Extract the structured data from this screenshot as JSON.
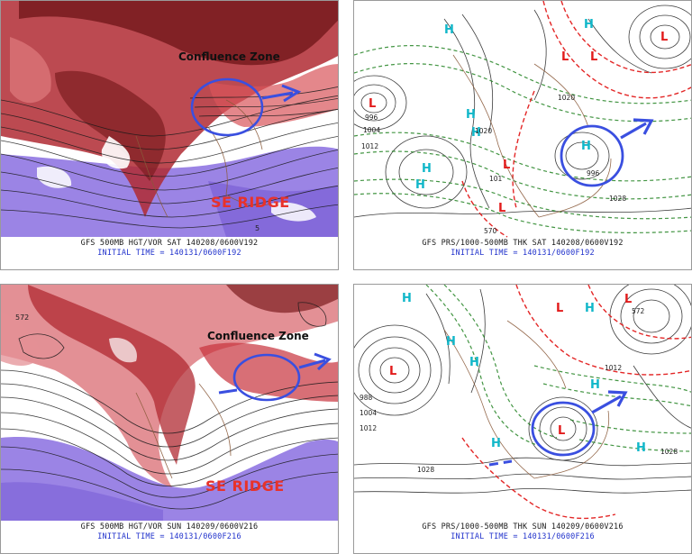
{
  "colors": {
    "high": "#11b7c9",
    "low": "#e21b1b",
    "highlight": "#3a4fe0",
    "ridge_text": "#e8322a",
    "vorticity_red": "#c8323c",
    "low_vorticity_purple": "#8a6fe0"
  },
  "panels": [
    {
      "caption_1": "GFS 500MB HGT/VOR SAT 140208/0600V192",
      "caption_2": "INITIAL TIME = 140131/0600F192",
      "confluence_label": "Confluence Zone",
      "ridge_label": "SE RIDGE",
      "numbers": [
        "5"
      ]
    },
    {
      "caption_1": "GFS PRS/1000-500MB THK SAT 140208/0600V192",
      "caption_2": "INITIAL TIME = 140131/0600F192",
      "numbers": [
        "996",
        "1004",
        "1012",
        "1020",
        "1020",
        "1028",
        "996",
        "101",
        "570"
      ],
      "pressure_labels": [
        "H",
        "H",
        "H",
        "H",
        "H",
        "H",
        "H",
        "L",
        "L",
        "L",
        "L",
        "L",
        "L"
      ]
    },
    {
      "caption_1": "GFS 500MB HGT/VOR SUN 140209/0600V216",
      "caption_2": "INITIAL TIME = 140131/0600F216",
      "confluence_label": "Confluence Zone",
      "ridge_label": "SE RIDGE",
      "numbers": [
        "572"
      ]
    },
    {
      "caption_1": "GFS PRS/1000-500MB THK SUN 140209/0600V216",
      "caption_2": "INITIAL TIME = 140131/0600F216",
      "numbers": [
        "572",
        "988",
        "1004",
        "1012",
        "1028",
        "1028",
        "1012"
      ],
      "pressure_labels": [
        "H",
        "H",
        "H",
        "H",
        "H",
        "H",
        "H",
        "L",
        "L",
        "L",
        "L"
      ]
    }
  ]
}
